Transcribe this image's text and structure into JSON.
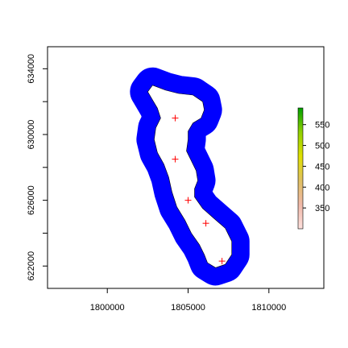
{
  "chart_data": {
    "type": "map",
    "title": "",
    "xlabel": "",
    "ylabel": "",
    "xlim": [
      1796300,
      1813400
    ],
    "ylim": [
      620640,
      635340
    ],
    "xticks": [
      1800000,
      1805000,
      1810000
    ],
    "xtick_labels": [
      "1800000",
      "1805000",
      "1810000"
    ],
    "yticks": [
      622000,
      626000,
      630000,
      634000
    ],
    "ytick_labels": [
      "622000",
      "626000",
      "630000",
      "634000"
    ],
    "buffer_color": "#0000ff",
    "background_color": "#ffffff",
    "points_color": "#ff0000",
    "points": [
      {
        "x": 1804200,
        "y": 631000
      },
      {
        "x": 1804200,
        "y": 628500
      },
      {
        "x": 1805000,
        "y": 626000
      },
      {
        "x": 1806100,
        "y": 624600
      },
      {
        "x": 1807100,
        "y": 622300
      }
    ],
    "island_outline": [
      [
        1802800,
        633000
      ],
      [
        1803600,
        632700
      ],
      [
        1804400,
        632500
      ],
      [
        1805300,
        632400
      ],
      [
        1805900,
        632000
      ],
      [
        1806000,
        631500
      ],
      [
        1805800,
        631000
      ],
      [
        1805300,
        630700
      ],
      [
        1805000,
        630200
      ],
      [
        1805000,
        629700
      ],
      [
        1804900,
        629000
      ],
      [
        1805200,
        628400
      ],
      [
        1805500,
        627800
      ],
      [
        1805600,
        627200
      ],
      [
        1805400,
        626700
      ],
      [
        1805400,
        626200
      ],
      [
        1805900,
        625500
      ],
      [
        1806600,
        624900
      ],
      [
        1807300,
        624300
      ],
      [
        1807700,
        623500
      ],
      [
        1807700,
        622700
      ],
      [
        1807300,
        622100
      ],
      [
        1806700,
        621900
      ],
      [
        1806200,
        622200
      ],
      [
        1806000,
        622700
      ],
      [
        1805700,
        623300
      ],
      [
        1805200,
        624000
      ],
      [
        1804800,
        624800
      ],
      [
        1804300,
        625600
      ],
      [
        1804000,
        626500
      ],
      [
        1803800,
        627400
      ],
      [
        1803500,
        628200
      ],
      [
        1803100,
        628900
      ],
      [
        1802900,
        629700
      ],
      [
        1803000,
        630400
      ],
      [
        1803300,
        631000
      ],
      [
        1803100,
        631600
      ],
      [
        1802800,
        632100
      ],
      [
        1802500,
        632600
      ]
    ],
    "buffer_distance": 1100,
    "legend": {
      "type": "colorbar",
      "range": [
        300,
        590
      ],
      "ticks": [
        350,
        400,
        450,
        500,
        550
      ],
      "tick_labels": [
        "350",
        "400",
        "450",
        "500",
        "550"
      ],
      "colors": [
        "#fde0dd",
        "#f0b8a8",
        "#e0c060",
        "#e0e000",
        "#90d000",
        "#00a000"
      ]
    }
  }
}
